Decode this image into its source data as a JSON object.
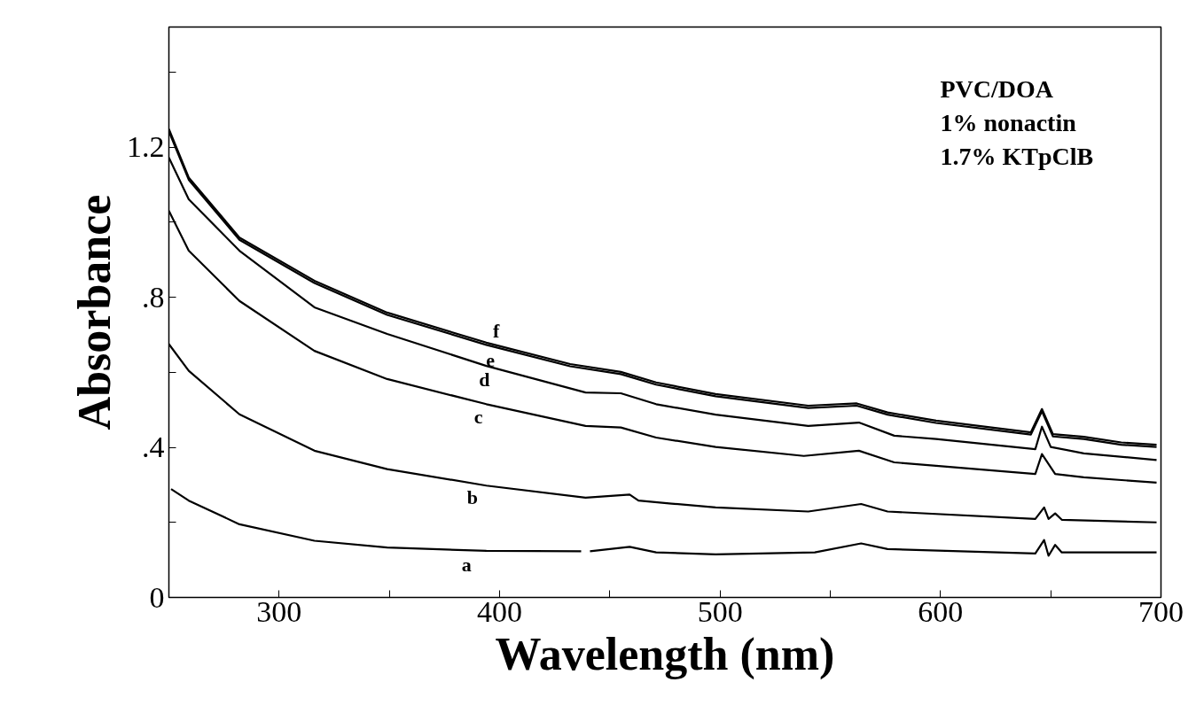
{
  "chart_data": {
    "type": "line",
    "xlabel": "Wavelength (nm)",
    "ylabel": "Absorbance",
    "xlim": [
      250,
      700
    ],
    "ylim": [
      0,
      1.52
    ],
    "xticks": [
      300,
      {
        "value": 350,
        "label": null
      },
      400,
      {
        "value": 450,
        "label": null
      },
      500,
      {
        "value": 550,
        "label": null
      },
      600,
      {
        "value": 650,
        "label": null
      },
      700
    ],
    "yticks": [
      {
        "value": 0,
        "label": "0"
      },
      {
        "value": 0.2,
        "label": null
      },
      {
        "value": 0.4,
        "label": ".4"
      },
      {
        "value": 0.6,
        "label": null
      },
      {
        "value": 0.8,
        "label": ".8"
      },
      {
        "value": 1.0,
        "label": null
      },
      {
        "value": 1.2,
        "label": "1.2"
      },
      {
        "value": 1.4,
        "label": null
      }
    ],
    "line_style": "solid",
    "series": [
      {
        "name": "f",
        "color": "#000000",
        "x": [
          250,
          259,
          282,
          316,
          349,
          394,
          432,
          455,
          471,
          498,
          540,
          562,
          576,
          598,
          641,
          646,
          651,
          665,
          682,
          698
        ],
        "values": [
          1.248,
          1.119,
          0.959,
          0.844,
          0.759,
          0.679,
          0.622,
          0.601,
          0.573,
          0.542,
          0.511,
          0.517,
          0.493,
          0.471,
          0.44,
          0.502,
          0.435,
          0.428,
          0.413,
          0.407
        ]
      },
      {
        "name": "e",
        "color": "#000000",
        "x": [
          250,
          259,
          282,
          316,
          349,
          394,
          432,
          455,
          471,
          498,
          540,
          562,
          576,
          598,
          641,
          646,
          651,
          665,
          682,
          698
        ],
        "values": [
          1.242,
          1.113,
          0.953,
          0.838,
          0.753,
          0.673,
          0.616,
          0.595,
          0.567,
          0.536,
          0.505,
          0.511,
          0.487,
          0.465,
          0.434,
          0.496,
          0.429,
          0.422,
          0.407,
          0.401
        ]
      },
      {
        "name": "d",
        "color": "#000000",
        "x": [
          250,
          259,
          282,
          316,
          349,
          394,
          439,
          455,
          471,
          498,
          540,
          563,
          579,
          598,
          643,
          646,
          650,
          665,
          698
        ],
        "values": [
          1.172,
          1.061,
          0.924,
          0.773,
          0.702,
          0.617,
          0.546,
          0.544,
          0.515,
          0.487,
          0.457,
          0.466,
          0.431,
          0.422,
          0.395,
          0.455,
          0.401,
          0.384,
          0.366
        ]
      },
      {
        "name": "c",
        "color": "#000000",
        "x": [
          250,
          259,
          282,
          316,
          349,
          394,
          439,
          455,
          471,
          498,
          538,
          563,
          579,
          598,
          643,
          646,
          652,
          665,
          698
        ],
        "values": [
          1.03,
          0.924,
          0.79,
          0.657,
          0.582,
          0.515,
          0.457,
          0.453,
          0.426,
          0.401,
          0.377,
          0.391,
          0.36,
          0.351,
          0.329,
          0.382,
          0.329,
          0.32,
          0.306
        ]
      },
      {
        "name": "b",
        "color": "#000000",
        "x": [
          250,
          259,
          282,
          316,
          349,
          394,
          439,
          459,
          463,
          478,
          498,
          540,
          564,
          576,
          643,
          647,
          649,
          652,
          655,
          698
        ],
        "values": [
          0.675,
          0.604,
          0.488,
          0.391,
          0.342,
          0.298,
          0.266,
          0.274,
          0.258,
          0.25,
          0.24,
          0.229,
          0.249,
          0.229,
          0.209,
          0.24,
          0.209,
          0.224,
          0.207,
          0.2
        ]
      },
      {
        "name": "a",
        "color": "#000000",
        "x": [
          251,
          259,
          282,
          316,
          349,
          394,
          437,
          439,
          441,
          459,
          471,
          498,
          543,
          564,
          576,
          643,
          647,
          649,
          652,
          655,
          698
        ],
        "values": [
          0.289,
          0.258,
          0.195,
          0.151,
          0.133,
          0.124,
          0.123,
          null,
          0.123,
          0.135,
          0.12,
          0.115,
          0.12,
          0.144,
          0.129,
          0.117,
          0.153,
          0.111,
          0.14,
          0.12,
          0.12
        ]
      }
    ],
    "annotations": [
      "PVC/DOA",
      "1% nonactin",
      "1.7% KTpClB"
    ]
  }
}
